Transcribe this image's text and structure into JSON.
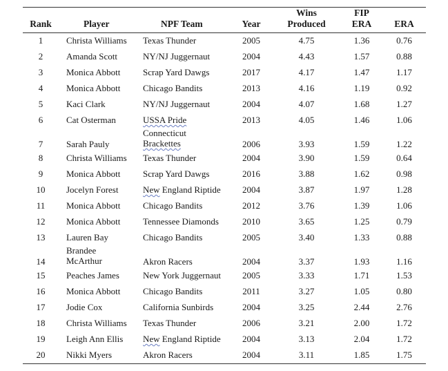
{
  "headers": {
    "rank": "Rank",
    "player": "Player",
    "team": "NPF Team",
    "year": "Year",
    "wins_top": "Wins",
    "wins_bottom": "Produced",
    "fip_top": "FIP",
    "fip_bottom": "ERA",
    "era": "ERA"
  },
  "rows": [
    {
      "rank": "1",
      "player": "Christa Williams",
      "team": "Texas Thunder",
      "year": "2005",
      "wins": "4.75",
      "fip": "1.36",
      "era": "0.76"
    },
    {
      "rank": "2",
      "player": "Amanda Scott",
      "team": "NY/NJ Juggernaut",
      "year": "2004",
      "wins": "4.43",
      "fip": "1.57",
      "era": "0.88"
    },
    {
      "rank": "3",
      "player": "Monica Abbott",
      "team": "Scrap Yard Dawgs",
      "year": "2017",
      "wins": "4.17",
      "fip": "1.47",
      "era": "1.17"
    },
    {
      "rank": "4",
      "player": "Monica Abbott",
      "team": "Chicago Bandits",
      "year": "2013",
      "wins": "4.16",
      "fip": "1.19",
      "era": "0.92"
    },
    {
      "rank": "5",
      "player": "Kaci Clark",
      "team": "NY/NJ Juggernaut",
      "year": "2004",
      "wins": "4.07",
      "fip": "1.68",
      "era": "1.27"
    },
    {
      "rank": "6",
      "player": "Cat Osterman",
      "team": "USSA Pride",
      "year": "2013",
      "wins": "4.05",
      "fip": "1.46",
      "era": "1.06"
    },
    {
      "rank": "7",
      "player": "Sarah Pauly",
      "team_line1": "Connecticut",
      "team_line2": "Brackettes",
      "year": "2006",
      "wins": "3.93",
      "fip": "1.59",
      "era": "1.22"
    },
    {
      "rank": "8",
      "player": "Christa Williams",
      "team": "Texas Thunder",
      "year": "2004",
      "wins": "3.90",
      "fip": "1.59",
      "era": "0.64"
    },
    {
      "rank": "9",
      "player": "Monica Abbott",
      "team": "Scrap Yard Dawgs",
      "year": "2016",
      "wins": "3.88",
      "fip": "1.62",
      "era": "0.98"
    },
    {
      "rank": "10",
      "player": "Jocelyn Forest",
      "team_word1": "New",
      "team_rest": " England Riptide",
      "year": "2004",
      "wins": "3.87",
      "fip": "1.97",
      "era": "1.28"
    },
    {
      "rank": "11",
      "player": "Monica Abbott",
      "team": "Chicago Bandits",
      "year": "2012",
      "wins": "3.76",
      "fip": "1.39",
      "era": "1.06"
    },
    {
      "rank": "12",
      "player": "Monica Abbott",
      "team": "Tennessee Diamonds",
      "year": "2010",
      "wins": "3.65",
      "fip": "1.25",
      "era": "0.79"
    },
    {
      "rank": "13",
      "player": "Lauren Bay",
      "team": "Chicago Bandits",
      "year": "2005",
      "wins": "3.40",
      "fip": "1.33",
      "era": "0.88"
    },
    {
      "rank": "14",
      "player_line1": "Brandee",
      "player_line2": "McArthur",
      "team": "Akron Racers",
      "year": "2004",
      "wins": "3.37",
      "fip": "1.93",
      "era": "1.16"
    },
    {
      "rank": "15",
      "player": "Peaches James",
      "team": "New York Juggernaut",
      "year": "2005",
      "wins": "3.33",
      "fip": "1.71",
      "era": "1.53"
    },
    {
      "rank": "16",
      "player": "Monica Abbott",
      "team": "Chicago Bandits",
      "year": "2011",
      "wins": "3.27",
      "fip": "1.05",
      "era": "0.80"
    },
    {
      "rank": "17",
      "player": "Jodie Cox",
      "team": "California Sunbirds",
      "year": "2004",
      "wins": "3.25",
      "fip": "2.44",
      "era": "2.76"
    },
    {
      "rank": "18",
      "player": "Christa Williams",
      "team": "Texas Thunder",
      "year": "2006",
      "wins": "3.21",
      "fip": "2.00",
      "era": "1.72"
    },
    {
      "rank": "19",
      "player": "Leigh Ann Ellis",
      "team_word1": "New",
      "team_rest": " England Riptide",
      "year": "2004",
      "wins": "3.13",
      "fip": "2.04",
      "era": "1.72"
    },
    {
      "rank": "20",
      "player": "Nikki Myers",
      "team": "Akron Racers",
      "year": "2004",
      "wins": "3.11",
      "fip": "1.85",
      "era": "1.75"
    }
  ]
}
